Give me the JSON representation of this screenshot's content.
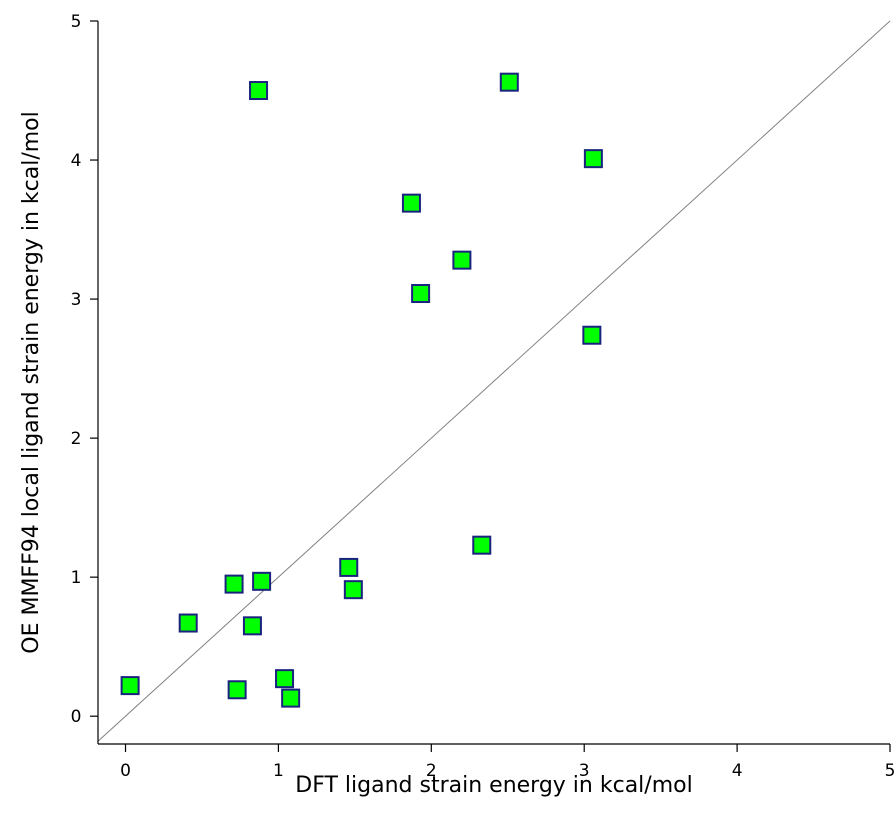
{
  "chart_data": {
    "type": "scatter",
    "xlabel": "DFT ligand strain energy in kcal/mol",
    "ylabel": "OE MMFF94 local ligand strain energy in kcal/mol",
    "xlim": [
      -0.18,
      5.0
    ],
    "ylim": [
      -0.2,
      5.0
    ],
    "xticks": [
      "0",
      "1",
      "2",
      "3",
      "4",
      "5"
    ],
    "yticks": [
      "0",
      "1",
      "2",
      "3",
      "4",
      "5"
    ],
    "grid": false,
    "legend": "none",
    "reference_line": "y = x",
    "marker": "square",
    "marker_fill": "#00ff00",
    "marker_edge": "#1a237e",
    "series": [
      {
        "points": [
          {
            "x": 0.03,
            "y": 0.22
          },
          {
            "x": 0.41,
            "y": 0.67
          },
          {
            "x": 0.71,
            "y": 0.95
          },
          {
            "x": 0.73,
            "y": 0.19
          },
          {
            "x": 0.83,
            "y": 0.65
          },
          {
            "x": 0.87,
            "y": 4.5
          },
          {
            "x": 0.89,
            "y": 0.97
          },
          {
            "x": 1.04,
            "y": 0.27
          },
          {
            "x": 1.08,
            "y": 0.13
          },
          {
            "x": 1.46,
            "y": 1.07
          },
          {
            "x": 1.49,
            "y": 0.91
          },
          {
            "x": 1.87,
            "y": 3.69
          },
          {
            "x": 1.93,
            "y": 3.04
          },
          {
            "x": 2.2,
            "y": 3.28
          },
          {
            "x": 2.33,
            "y": 1.23
          },
          {
            "x": 2.51,
            "y": 4.56
          },
          {
            "x": 3.05,
            "y": 2.74
          },
          {
            "x": 3.06,
            "y": 4.01
          }
        ]
      }
    ]
  }
}
